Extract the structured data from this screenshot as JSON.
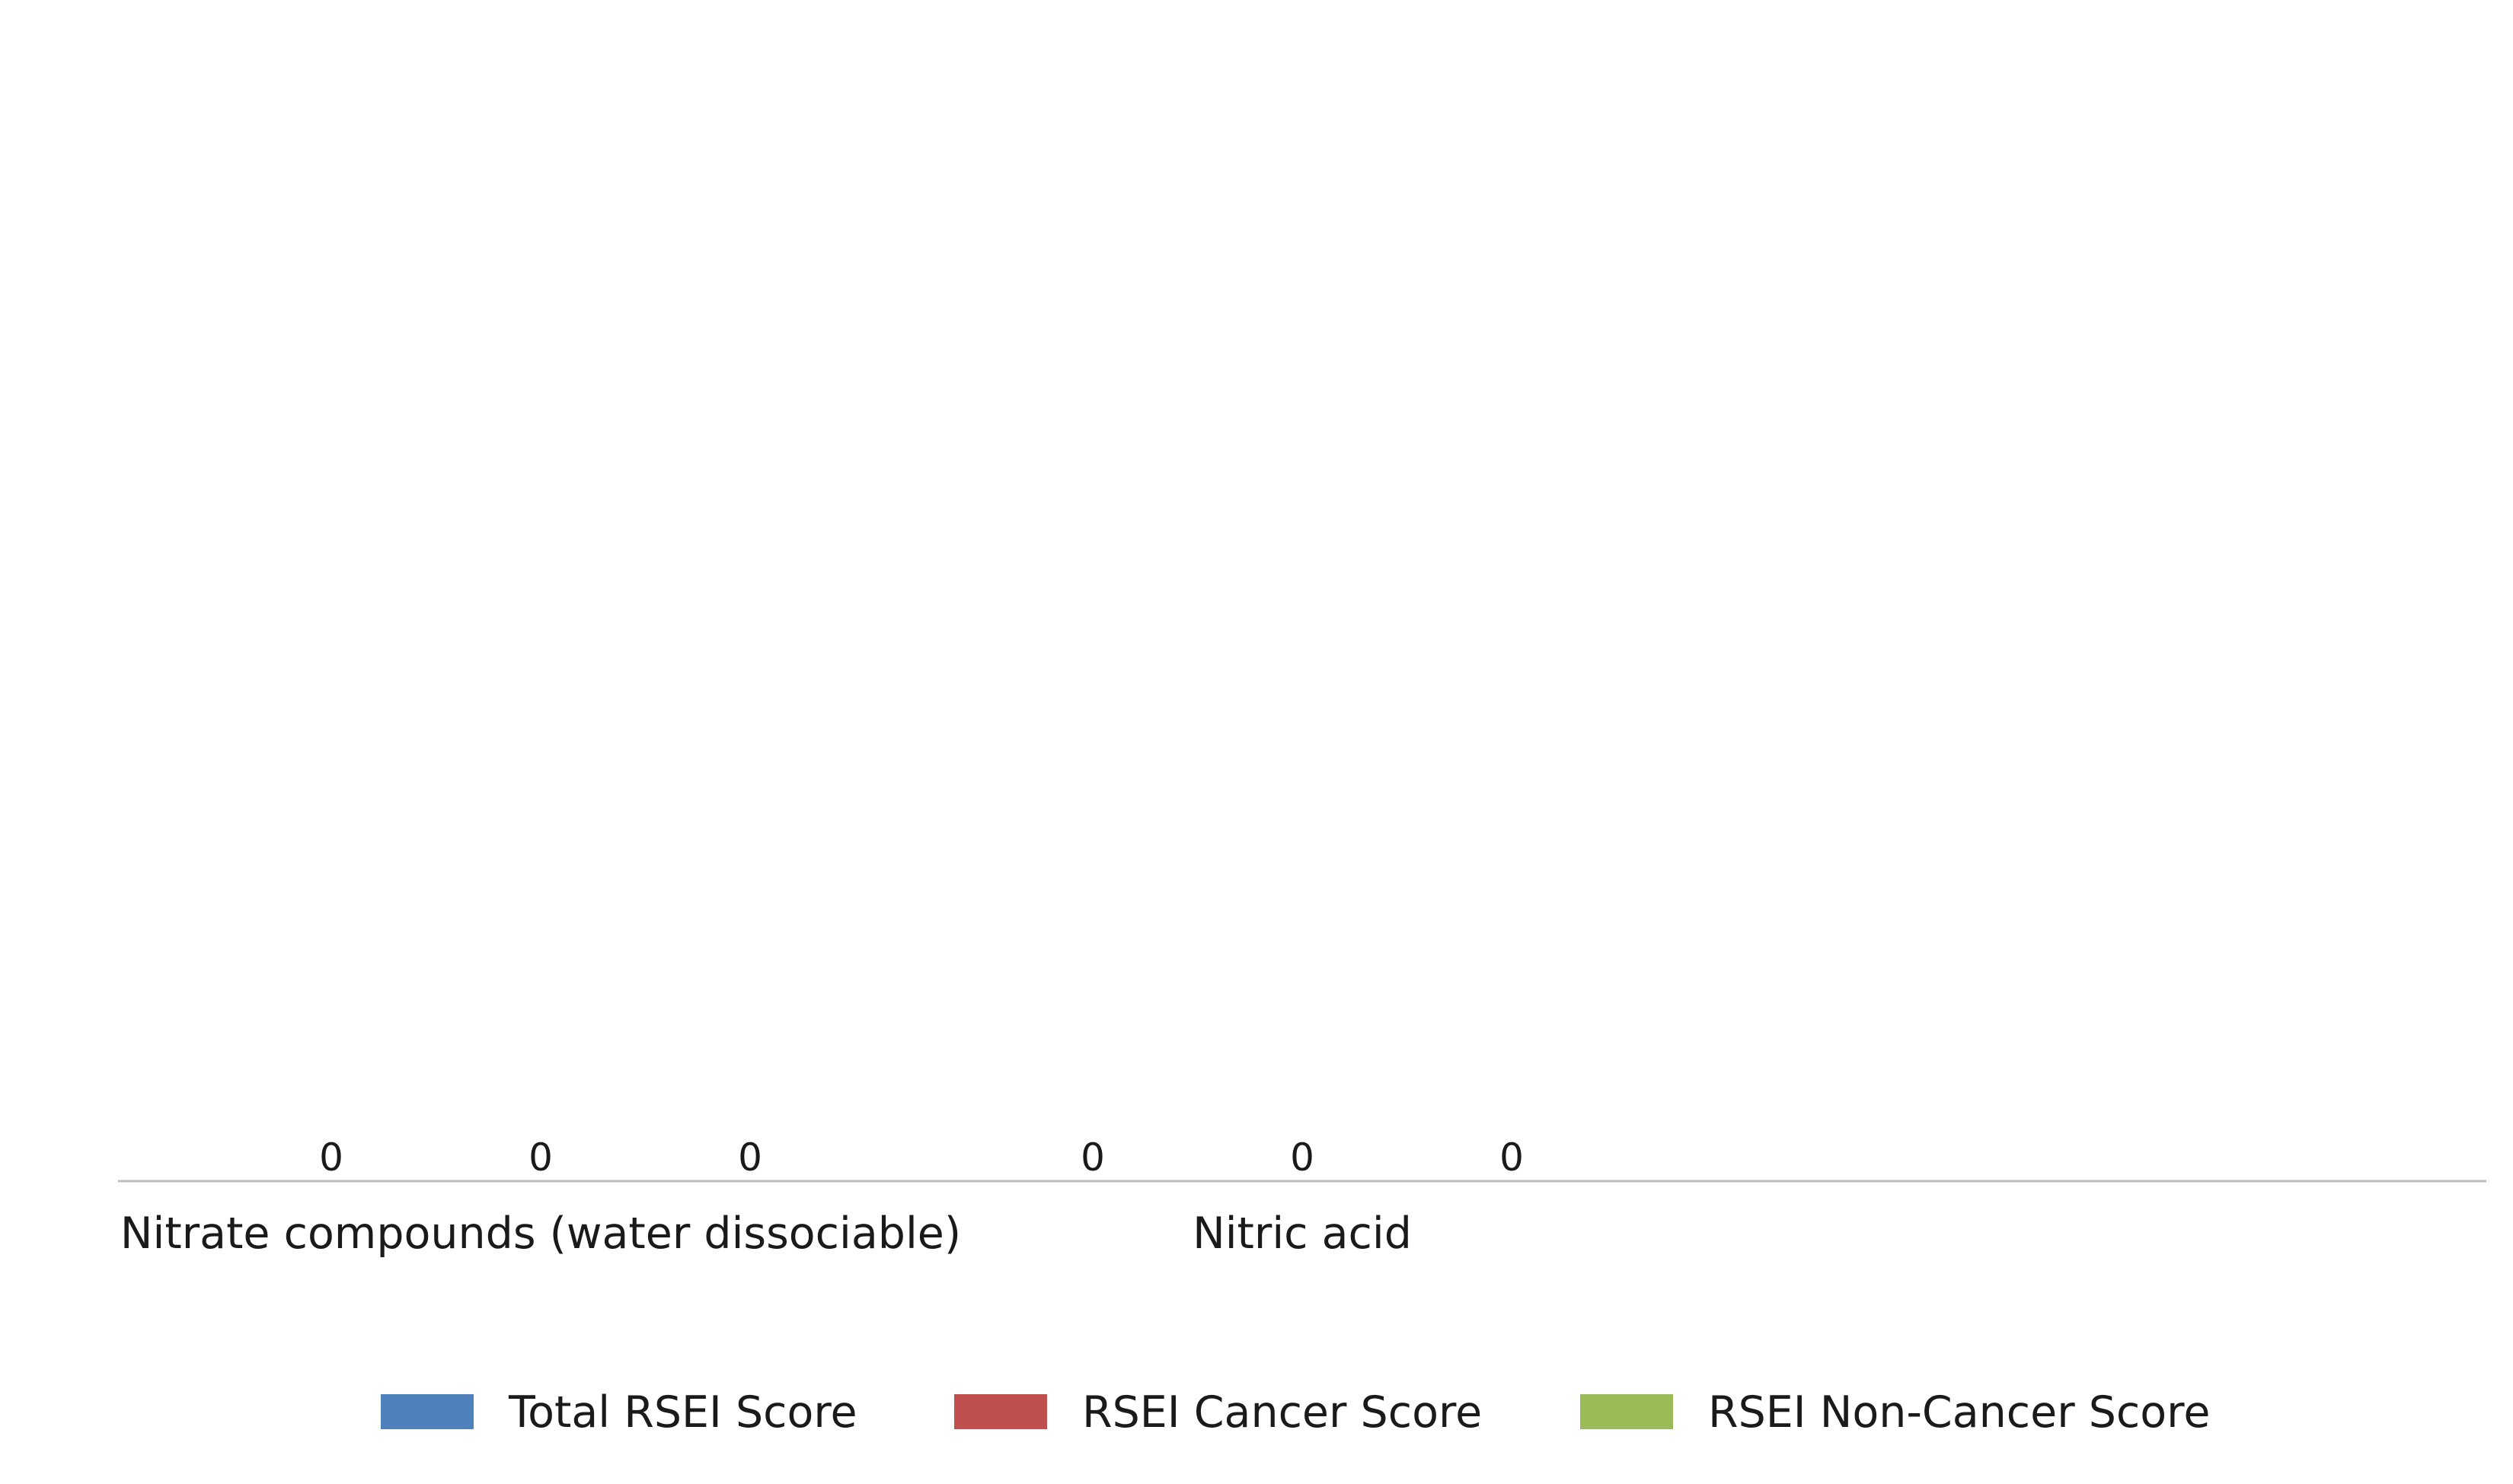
{
  "chart_data": {
    "type": "bar",
    "title": "",
    "xlabel": "",
    "ylabel": "",
    "categories": [
      "Nitrate compounds (water dissociable)",
      "Nitric acid"
    ],
    "series": [
      {
        "name": "Total RSEI Score",
        "color": "#4f81bd",
        "values": [
          0,
          0
        ]
      },
      {
        "name": "RSEI Cancer Score",
        "color": "#c0504d",
        "values": [
          0,
          0
        ]
      },
      {
        "name": "RSEI Non-Cancer Score",
        "color": "#9bbb59",
        "values": [
          0,
          0
        ]
      }
    ],
    "data_labels": [
      [
        "0",
        "0"
      ],
      [
        "0",
        "0"
      ],
      [
        "0",
        "0"
      ]
    ],
    "ylim": [
      0,
      1
    ],
    "grid": false,
    "legend_position": "bottom",
    "axis_color": "#bfbfbf"
  }
}
